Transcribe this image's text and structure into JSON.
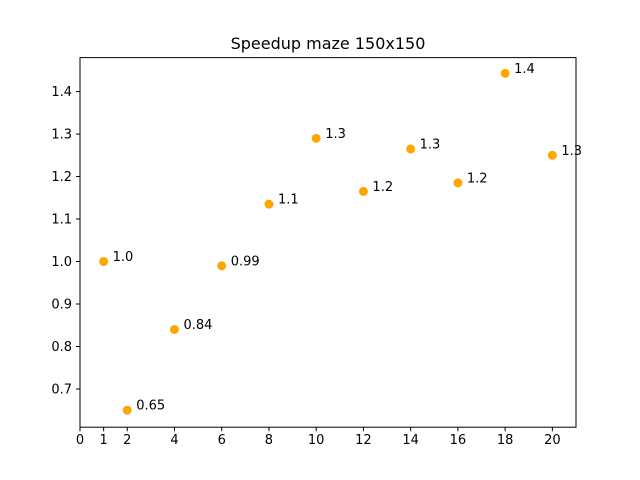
{
  "chart_data": {
    "type": "scatter",
    "title": "Speedup maze 150x150",
    "xlabel": "",
    "ylabel": "",
    "x": [
      1,
      2,
      4,
      6,
      8,
      10,
      12,
      14,
      16,
      18,
      20
    ],
    "y": [
      1.0,
      0.65,
      0.84,
      0.99,
      1.135,
      1.29,
      1.165,
      1.265,
      1.185,
      1.443,
      1.25
    ],
    "data_labels": [
      "1.0",
      "0.65",
      "0.84",
      "0.99",
      "1.1",
      "1.3",
      "1.2",
      "1.3",
      "1.2",
      "1.4",
      "1.3"
    ],
    "xticks": [
      0,
      1,
      2,
      4,
      6,
      8,
      10,
      12,
      14,
      16,
      18,
      20
    ],
    "xtick_labels": [
      "0",
      "1",
      "2",
      "4",
      "6",
      "8",
      "10",
      "12",
      "14",
      "16",
      "18",
      "20"
    ],
    "yticks": [
      0.7,
      0.8,
      0.9,
      1.0,
      1.1,
      1.2,
      1.3,
      1.4
    ],
    "ytick_labels": [
      "0.7",
      "0.8",
      "0.9",
      "1.0",
      "1.1",
      "1.2",
      "1.3",
      "1.4"
    ],
    "xlim": [
      0,
      21
    ],
    "ylim": [
      0.61,
      1.48
    ],
    "grid": false,
    "marker_color": "#ffa500"
  }
}
